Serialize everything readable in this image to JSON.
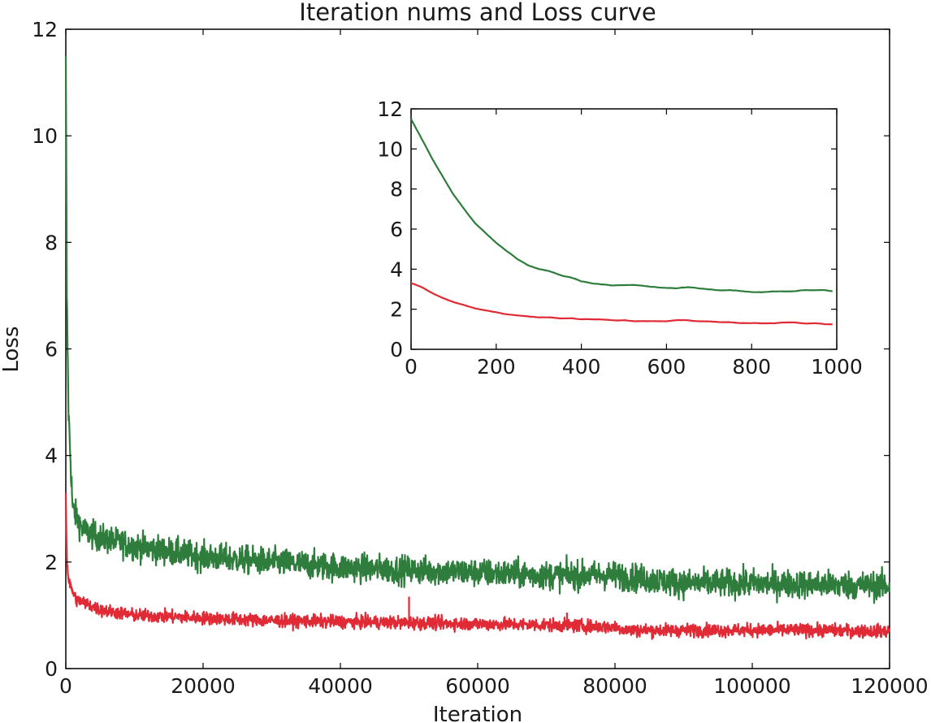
{
  "chart_data": [
    {
      "type": "line",
      "title": "Iteration nums and Loss curve",
      "xlabel": "Iteration",
      "ylabel": "Loss",
      "xlim": [
        0,
        120000
      ],
      "ylim": [
        0,
        12
      ],
      "xticks": [
        0,
        20000,
        40000,
        60000,
        80000,
        100000,
        120000
      ],
      "yticks": [
        0,
        2,
        4,
        6,
        8,
        10,
        12
      ],
      "grid": false,
      "legend": "none",
      "series": [
        {
          "color": "#2e7d3c",
          "noise": 0.13,
          "points": [
            [
              0,
              11.5
            ],
            [
              150,
              7.0
            ],
            [
              400,
              4.8
            ],
            [
              1000,
              3.0
            ],
            [
              2500,
              2.6
            ],
            [
              5000,
              2.45
            ],
            [
              10000,
              2.3
            ],
            [
              20000,
              2.1
            ],
            [
              30000,
              2.0
            ],
            [
              40000,
              1.9
            ],
            [
              50000,
              1.85
            ],
            [
              60000,
              1.8
            ],
            [
              70000,
              1.75
            ],
            [
              80000,
              1.75
            ],
            [
              90000,
              1.6
            ],
            [
              100000,
              1.6
            ],
            [
              110000,
              1.58
            ],
            [
              120000,
              1.55
            ]
          ]
        },
        {
          "color": "#e02a35",
          "noise": 0.06,
          "points": [
            [
              0,
              3.3
            ],
            [
              150,
              2.0
            ],
            [
              500,
              1.6
            ],
            [
              1500,
              1.3
            ],
            [
              5000,
              1.1
            ],
            [
              10000,
              1.0
            ],
            [
              20000,
              0.95
            ],
            [
              30000,
              0.9
            ],
            [
              40000,
              0.88
            ],
            [
              50000,
              0.86
            ],
            [
              60000,
              0.84
            ],
            [
              70000,
              0.82
            ],
            [
              80000,
              0.78
            ],
            [
              82000,
              0.72
            ],
            [
              90000,
              0.72
            ],
            [
              100000,
              0.72
            ],
            [
              110000,
              0.72
            ],
            [
              120000,
              0.7
            ]
          ],
          "spikes": [
            [
              50000,
              1.35
            ],
            [
              73000,
              1.05
            ]
          ]
        }
      ]
    },
    {
      "type": "line",
      "title": "",
      "xlabel": "",
      "ylabel": "",
      "xlim": [
        0,
        1000
      ],
      "ylim": [
        0,
        12
      ],
      "xticks": [
        0,
        200,
        400,
        600,
        800,
        1000
      ],
      "yticks": [
        0,
        2,
        4,
        6,
        8,
        10,
        12
      ],
      "grid": false,
      "legend": "none",
      "series": [
        {
          "color": "#2e7d3c",
          "noise": 0.03,
          "points": [
            [
              0,
              11.5
            ],
            [
              25,
              10.5
            ],
            [
              50,
              9.5
            ],
            [
              75,
              8.6
            ],
            [
              100,
              7.7
            ],
            [
              125,
              7.0
            ],
            [
              150,
              6.3
            ],
            [
              175,
              5.8
            ],
            [
              200,
              5.3
            ],
            [
              225,
              4.9
            ],
            [
              250,
              4.5
            ],
            [
              275,
              4.2
            ],
            [
              300,
              4.0
            ],
            [
              325,
              3.9
            ],
            [
              350,
              3.7
            ],
            [
              375,
              3.6
            ],
            [
              400,
              3.4
            ],
            [
              425,
              3.3
            ],
            [
              450,
              3.25
            ],
            [
              475,
              3.2
            ],
            [
              500,
              3.2
            ],
            [
              525,
              3.2
            ],
            [
              550,
              3.15
            ],
            [
              575,
              3.1
            ],
            [
              600,
              3.05
            ],
            [
              625,
              3.05
            ],
            [
              650,
              3.1
            ],
            [
              675,
              3.05
            ],
            [
              700,
              3.0
            ],
            [
              725,
              2.95
            ],
            [
              750,
              2.95
            ],
            [
              775,
              2.9
            ],
            [
              800,
              2.85
            ],
            [
              825,
              2.85
            ],
            [
              850,
              2.9
            ],
            [
              875,
              2.9
            ],
            [
              900,
              2.9
            ],
            [
              925,
              2.95
            ],
            [
              950,
              2.95
            ],
            [
              975,
              2.95
            ],
            [
              990,
              2.9
            ]
          ]
        },
        {
          "color": "#e02a35",
          "noise": 0.02,
          "points": [
            [
              0,
              3.3
            ],
            [
              25,
              3.1
            ],
            [
              50,
              2.8
            ],
            [
              75,
              2.55
            ],
            [
              100,
              2.35
            ],
            [
              125,
              2.2
            ],
            [
              150,
              2.05
            ],
            [
              175,
              1.95
            ],
            [
              200,
              1.85
            ],
            [
              225,
              1.75
            ],
            [
              250,
              1.7
            ],
            [
              275,
              1.65
            ],
            [
              300,
              1.6
            ],
            [
              325,
              1.6
            ],
            [
              350,
              1.55
            ],
            [
              375,
              1.55
            ],
            [
              400,
              1.5
            ],
            [
              425,
              1.5
            ],
            [
              450,
              1.5
            ],
            [
              475,
              1.45
            ],
            [
              500,
              1.45
            ],
            [
              525,
              1.4
            ],
            [
              550,
              1.4
            ],
            [
              575,
              1.4
            ],
            [
              600,
              1.4
            ],
            [
              625,
              1.45
            ],
            [
              650,
              1.45
            ],
            [
              675,
              1.4
            ],
            [
              700,
              1.4
            ],
            [
              725,
              1.35
            ],
            [
              750,
              1.35
            ],
            [
              775,
              1.3
            ],
            [
              800,
              1.3
            ],
            [
              825,
              1.3
            ],
            [
              850,
              1.3
            ],
            [
              875,
              1.35
            ],
            [
              900,
              1.35
            ],
            [
              925,
              1.3
            ],
            [
              950,
              1.3
            ],
            [
              975,
              1.25
            ],
            [
              990,
              1.25
            ]
          ]
        }
      ]
    }
  ]
}
